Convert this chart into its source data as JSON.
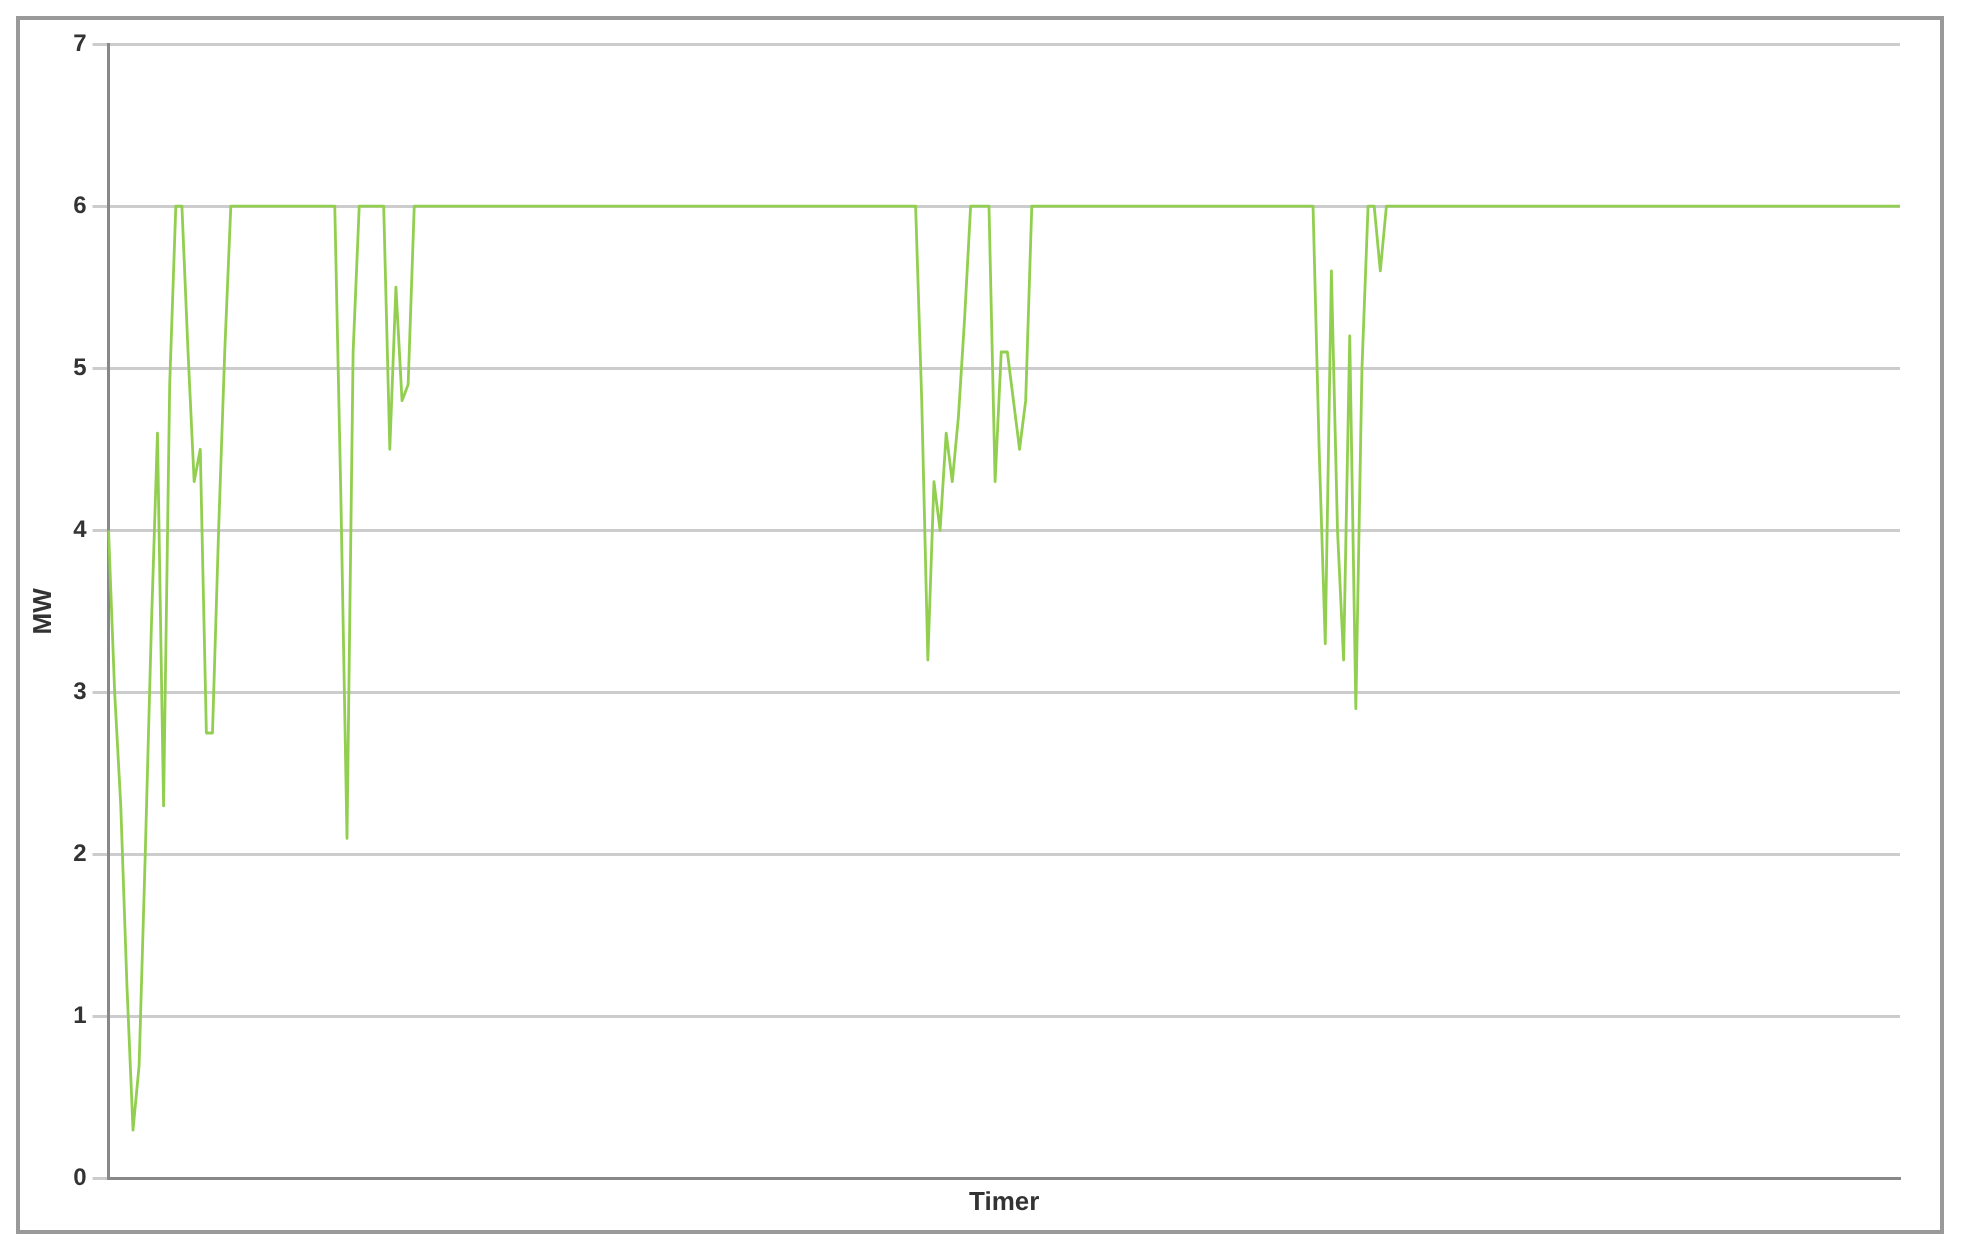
{
  "chart_data": {
    "type": "line",
    "xlabel": "Timer",
    "ylabel": "MW",
    "categories": [
      null,
      null,
      null,
      null,
      null,
      null,
      null,
      null,
      null,
      null,
      null,
      null,
      null,
      null,
      null,
      null,
      null,
      null,
      null,
      null,
      null,
      null,
      null,
      null,
      null,
      null,
      null,
      null,
      null,
      null,
      null,
      null,
      null,
      null,
      null,
      null,
      null,
      null,
      null,
      null,
      null,
      null,
      null,
      null,
      null,
      null,
      null,
      null,
      null,
      null,
      null,
      null,
      null,
      null,
      null,
      null,
      null,
      null,
      null,
      null,
      null,
      null,
      null,
      null,
      null,
      null,
      null,
      null,
      null,
      null,
      null,
      null,
      null,
      null,
      null,
      null,
      null,
      null,
      null,
      null,
      null,
      null,
      null,
      null,
      null,
      null,
      null,
      null,
      null,
      null,
      null,
      null,
      null,
      null,
      null,
      null,
      null,
      null,
      null,
      null,
      null,
      null,
      null,
      null,
      null,
      null,
      null,
      null,
      null,
      null,
      null,
      null,
      null,
      null,
      null,
      null,
      null,
      null,
      null,
      null,
      null,
      null,
      null,
      null,
      null,
      null,
      null,
      null,
      null,
      null,
      null,
      null,
      null,
      null,
      null,
      null,
      null,
      null,
      null,
      null,
      null,
      null,
      null,
      null,
      null,
      null,
      null,
      null,
      null,
      null,
      null,
      null,
      null,
      null,
      null,
      null,
      null,
      null,
      null,
      null,
      null,
      null,
      null,
      null,
      null,
      null,
      null,
      null,
      null,
      null,
      null,
      null,
      null,
      null,
      null,
      null,
      null,
      null,
      null,
      null,
      null,
      null,
      null,
      null,
      null,
      null,
      null,
      null,
      null,
      null,
      null,
      null,
      null,
      null,
      null,
      null,
      null,
      null,
      null,
      null,
      null,
      null,
      null,
      null,
      null,
      null,
      null,
      null,
      null,
      null,
      null,
      null,
      null,
      null,
      null,
      null,
      null,
      null,
      null,
      null,
      null,
      null,
      null,
      null,
      null,
      null,
      null,
      null,
      null,
      null,
      null,
      null,
      null,
      null,
      null,
      null,
      null,
      null,
      null,
      null,
      null,
      null,
      null,
      null,
      null,
      null,
      null,
      null,
      null,
      null,
      null,
      null,
      null,
      null,
      null,
      null,
      null,
      null,
      null,
      null,
      null,
      null,
      null,
      null,
      null,
      null,
      null,
      null,
      null,
      null,
      null,
      null,
      null,
      null,
      null,
      null,
      null,
      null,
      null,
      null,
      null,
      null,
      null,
      null,
      null,
      null,
      null,
      null,
      null,
      null,
      null,
      null,
      null,
      null
    ],
    "color": "#92cf50",
    "marker": "none",
    "values": [
      4.0,
      3.0,
      2.3,
      1.2,
      0.3,
      0.7,
      2.0,
      3.4,
      4.6,
      2.3,
      4.9,
      6,
      6,
      5.1,
      4.3,
      4.5,
      2.75,
      2.75,
      4.0,
      5.1,
      6,
      6,
      6,
      6,
      6,
      6,
      6,
      6,
      6,
      6,
      6,
      6,
      6,
      6,
      6,
      6,
      6,
      6,
      4.2,
      2.1,
      5.1,
      6,
      6,
      6,
      6,
      6,
      4.5,
      5.5,
      4.8,
      4.9,
      6,
      6,
      6,
      6,
      6,
      6,
      6,
      6,
      6,
      6,
      6,
      6,
      6,
      6,
      6,
      6,
      6,
      6,
      6,
      6,
      6,
      6,
      6,
      6,
      6,
      6,
      6,
      6,
      6,
      6,
      6,
      6,
      6,
      6,
      6,
      6,
      6,
      6,
      6,
      6,
      6,
      6,
      6,
      6,
      6,
      6,
      6,
      6,
      6,
      6,
      6,
      6,
      6,
      6,
      6,
      6,
      6,
      6,
      6,
      6,
      6,
      6,
      6,
      6,
      6,
      6,
      6,
      6,
      6,
      6,
      6,
      6,
      6,
      6,
      6,
      6,
      6,
      6,
      6,
      6,
      6,
      6,
      6,
      4.8,
      3.2,
      4.3,
      4.0,
      4.6,
      4.3,
      4.7,
      5.3,
      6,
      6,
      6,
      6,
      4.3,
      5.1,
      5.1,
      4.8,
      4.5,
      4.8,
      6,
      6,
      6,
      6,
      6,
      6,
      6,
      6,
      6,
      6,
      6,
      6,
      6,
      6,
      6,
      6,
      6,
      6,
      6,
      6,
      6,
      6,
      6,
      6,
      6,
      6,
      6,
      6,
      6,
      6,
      6,
      6,
      6,
      6,
      6,
      6,
      6,
      6,
      6,
      6,
      6,
      6,
      6,
      6,
      6,
      6,
      6,
      4.5,
      3.3,
      5.6,
      4.0,
      3.2,
      5.2,
      2.9,
      5.0,
      6,
      6,
      5.6,
      6,
      6,
      6,
      6,
      6,
      6,
      6,
      6,
      6,
      6,
      6,
      6,
      6,
      6,
      6,
      6,
      6,
      6,
      6,
      6,
      6,
      6,
      6,
      6,
      6,
      6,
      6,
      6,
      6,
      6,
      6,
      6,
      6,
      6,
      6,
      6,
      6,
      6,
      6,
      6,
      6,
      6,
      6,
      6,
      6,
      6,
      6,
      6,
      6,
      6,
      6,
      6,
      6,
      6,
      6,
      6,
      6,
      6,
      6,
      6,
      6,
      6,
      6,
      6,
      6,
      6,
      6,
      6,
      6,
      6,
      6,
      6,
      6,
      6,
      6,
      6,
      6,
      6,
      6,
      6,
      6,
      6,
      6,
      6,
      6
    ],
    "ylim": [
      0,
      7
    ],
    "yticks": [
      0,
      1,
      2,
      3,
      4,
      5,
      6,
      7
    ],
    "grid": "y",
    "tick_labels": "y"
  }
}
